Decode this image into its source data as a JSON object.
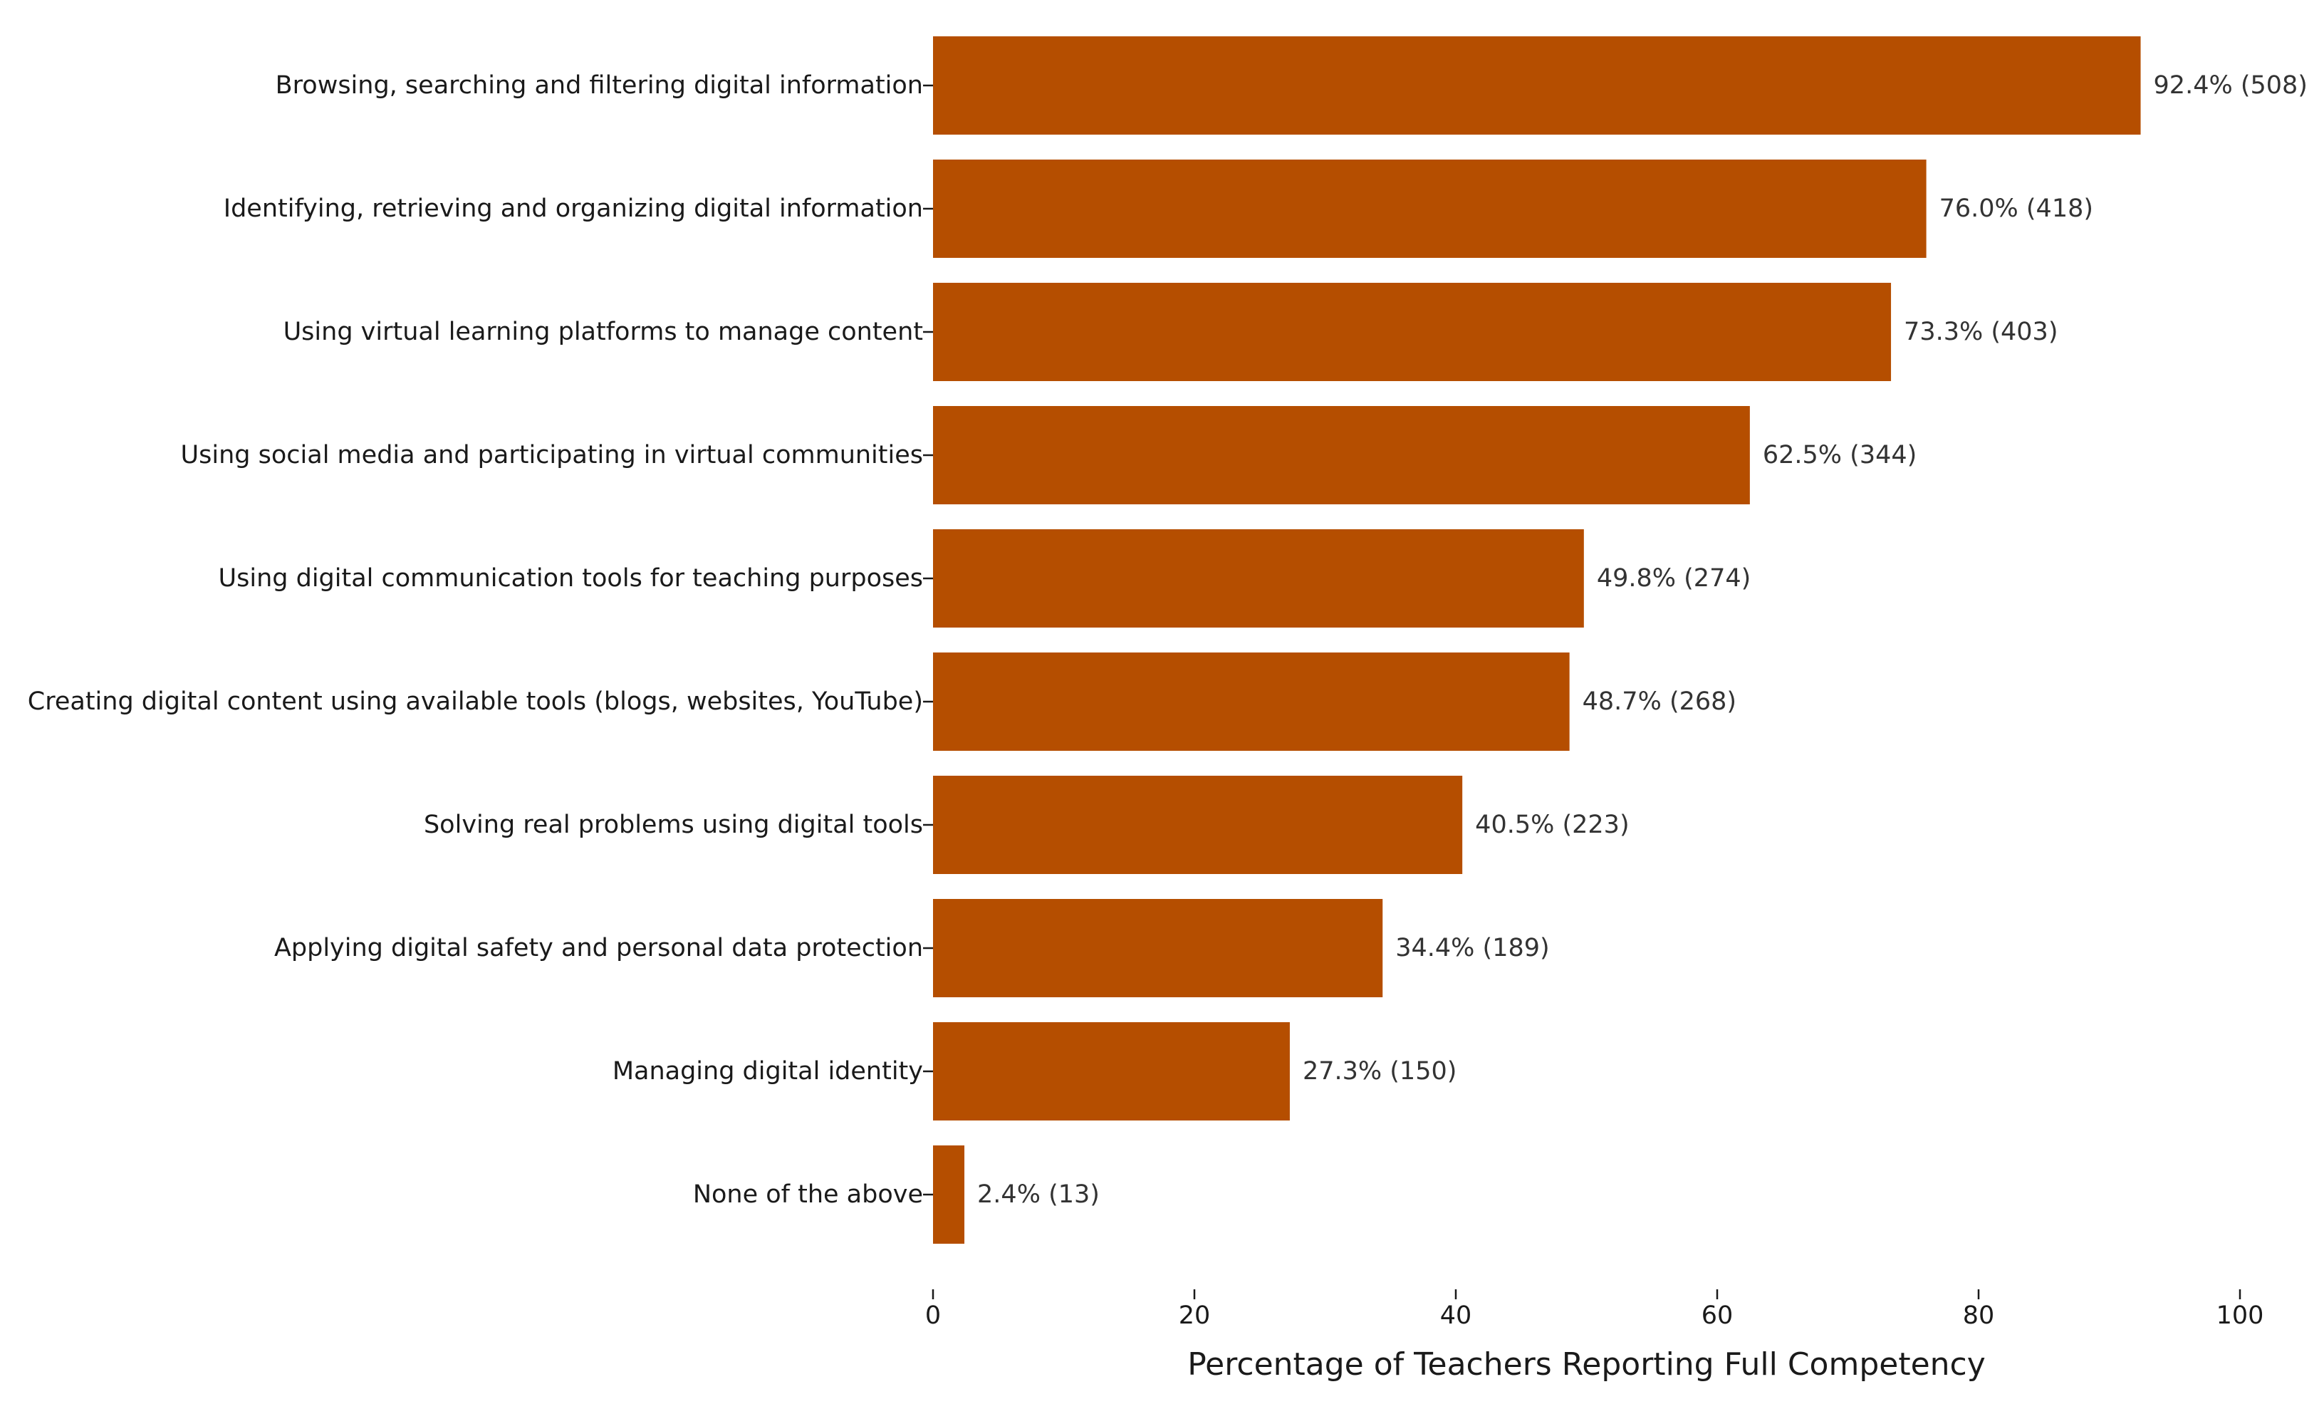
{
  "chart_data": {
    "type": "bar",
    "orientation": "horizontal",
    "categories": [
      "Browsing, searching and filtering digital information",
      "Identifying, retrieving and organizing digital information",
      "Using virtual learning platforms to manage content",
      "Using social media and participating in virtual communities",
      "Using digital communication tools for teaching purposes",
      "Creating digital content using available tools (blogs, websites, YouTube)",
      "Solving real problems using digital tools",
      "Applying digital safety and personal data protection",
      "Managing digital identity",
      "None of the above"
    ],
    "values": [
      92.4,
      76.0,
      73.3,
      62.5,
      49.8,
      48.7,
      40.5,
      34.4,
      27.3,
      2.4
    ],
    "counts": [
      508,
      418,
      403,
      344,
      274,
      268,
      223,
      189,
      150,
      13
    ],
    "data_labels": [
      "92.4% (508)",
      "76.0% (418)",
      "73.3% (403)",
      "62.5% (344)",
      "49.8% (274)",
      "48.7% (268)",
      "40.5% (223)",
      "34.4% (189)",
      "27.3% (150)",
      "2.4% (13)"
    ],
    "title": "",
    "xlabel": "Percentage of Teachers Reporting Full Competency",
    "ylabel": "",
    "xlim": [
      0,
      100
    ],
    "xticks": [
      0,
      20,
      40,
      60,
      80,
      100
    ],
    "xtick_labels": [
      "0",
      "20",
      "40",
      "60",
      "80",
      "100"
    ],
    "grid": false,
    "legend": "none",
    "colors": {
      "bar": "#b54e00",
      "text": "#1a1a1a",
      "data_label": "#333333"
    }
  }
}
